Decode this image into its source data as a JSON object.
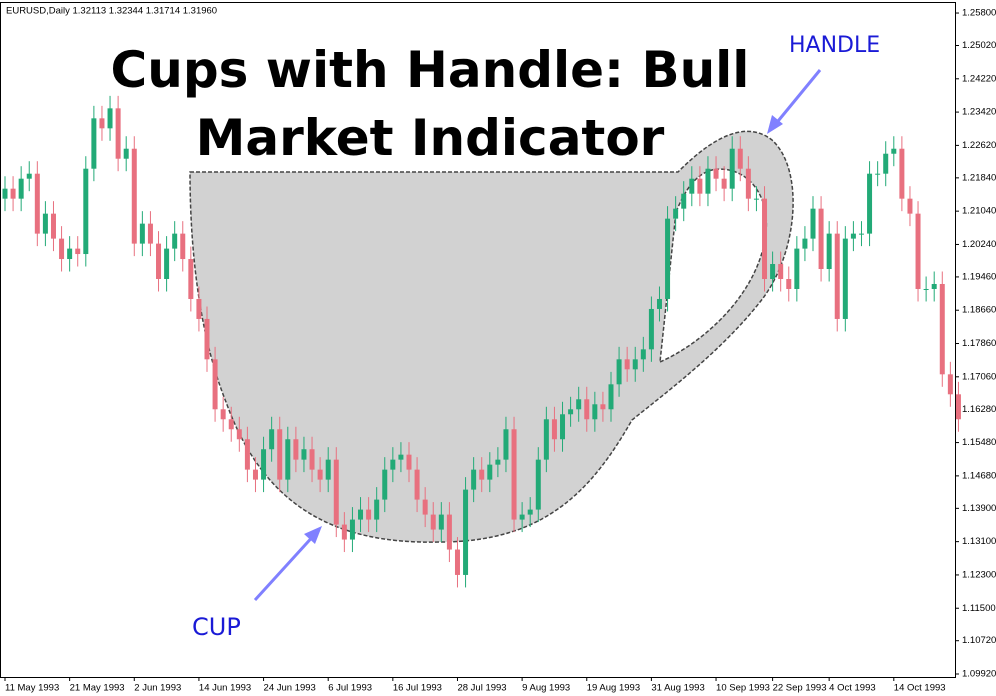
{
  "chart_data": {
    "type": "candlestick",
    "header": "EURUSD,Daily  1.32113 1.32344 1.31714 1.31960",
    "title": "Cups with Handle: Bull Market Indicator",
    "annotations": {
      "handle": "HANDLE",
      "cup": "CUP"
    },
    "up_color": "#22aa77",
    "down_color": "#e8707f",
    "open": [
      1.2134,
      1.2158,
      1.2134,
      1.2182,
      1.2194,
      1.205,
      1.2098,
      1.2038,
      1.1989,
      1.2014,
      1.2001,
      1.2206,
      1.2327,
      1.2303,
      1.2351,
      1.223,
      1.2254,
      1.2026,
      1.2074,
      1.2026,
      1.1941,
      1.2014,
      1.205,
      1.1989,
      1.1893,
      1.1845,
      1.1748,
      1.1628,
      1.1604,
      1.158,
      1.1556,
      1.1483,
      1.1459,
      1.1532,
      1.158,
      1.1459,
      1.1556,
      1.1507,
      1.1532,
      1.1483,
      1.1459,
      1.1507,
      1.1351,
      1.1315,
      1.1363,
      1.1387,
      1.1363,
      1.1411,
      1.1483,
      1.1507,
      1.1519,
      1.1483,
      1.1411,
      1.1375,
      1.1339,
      1.1375,
      1.1291,
      1.123,
      1.1435,
      1.1483,
      1.1459,
      1.1495,
      1.1507,
      1.158,
      1.1363,
      1.1375,
      1.1387,
      1.1507,
      1.1604,
      1.1556,
      1.1616,
      1.1628,
      1.1652,
      1.1604,
      1.164,
      1.1628,
      1.1688,
      1.1748,
      1.1724,
      1.1748,
      1.1772,
      1.1869,
      1.1893,
      1.2086,
      1.211,
      1.2146,
      1.2182,
      1.2146,
      1.2206,
      1.2182,
      1.2158,
      1.2254,
      1.2206,
      1.2134,
      1.2134,
      1.1941,
      1.1977,
      1.1941,
      1.1917,
      1.2014,
      1.2038,
      1.211,
      1.1965,
      1.205,
      1.1845,
      1.2038,
      1.205,
      1.205,
      1.2194,
      1.2194,
      1.2242,
      1.2254,
      1.2134,
      1.2098,
      1.1917,
      1.1917,
      1.1929,
      1.1712,
      1.1664
    ],
    "high": [
      1.2188,
      1.2188,
      1.2212,
      1.2224,
      1.2224,
      1.2128,
      1.2128,
      1.2068,
      1.2044,
      1.2044,
      1.2236,
      1.2357,
      1.2357,
      1.2381,
      1.2381,
      1.2284,
      1.2284,
      1.2104,
      1.2104,
      1.2056,
      1.2044,
      1.208,
      1.208,
      1.2019,
      1.1923,
      1.1875,
      1.1778,
      1.1658,
      1.1634,
      1.161,
      1.1586,
      1.1513,
      1.1562,
      1.161,
      1.161,
      1.1586,
      1.1586,
      1.1562,
      1.1562,
      1.1513,
      1.1537,
      1.1537,
      1.1381,
      1.1393,
      1.1417,
      1.1417,
      1.1441,
      1.1513,
      1.1537,
      1.1549,
      1.1549,
      1.1513,
      1.1441,
      1.1405,
      1.1405,
      1.1405,
      1.1321,
      1.1465,
      1.1513,
      1.1513,
      1.1525,
      1.1537,
      1.161,
      1.161,
      1.1405,
      1.1417,
      1.1537,
      1.1634,
      1.1634,
      1.1646,
      1.1658,
      1.1682,
      1.1682,
      1.167,
      1.167,
      1.1718,
      1.1778,
      1.1778,
      1.1778,
      1.1802,
      1.1899,
      1.1923,
      1.2116,
      1.214,
      1.2176,
      1.2212,
      1.2212,
      1.2236,
      1.2236,
      1.2212,
      1.2284,
      1.2284,
      1.2236,
      1.2164,
      1.2164,
      1.2007,
      1.2007,
      1.1971,
      1.2044,
      1.2068,
      1.214,
      1.214,
      1.208,
      1.208,
      1.2068,
      1.208,
      1.208,
      1.2224,
      1.2224,
      1.2272,
      1.2284,
      1.2284,
      1.2164,
      1.2128,
      1.1947,
      1.1959,
      1.1959,
      1.1742,
      1.1694
    ],
    "low": [
      1.2104,
      1.2104,
      1.2104,
      1.2152,
      1.202,
      1.202,
      1.2008,
      1.1959,
      1.1959,
      1.1971,
      1.1971,
      1.2176,
      1.2273,
      1.2273,
      1.22,
      1.22,
      1.1996,
      1.1996,
      1.1996,
      1.1911,
      1.1911,
      1.1984,
      1.1959,
      1.1863,
      1.1815,
      1.1718,
      1.1598,
      1.1574,
      1.155,
      1.1526,
      1.1453,
      1.1429,
      1.1429,
      1.1502,
      1.1429,
      1.1429,
      1.1477,
      1.1477,
      1.1453,
      1.1429,
      1.1429,
      1.1321,
      1.1285,
      1.1285,
      1.1333,
      1.1333,
      1.1333,
      1.1381,
      1.1453,
      1.1477,
      1.1453,
      1.1381,
      1.1345,
      1.1309,
      1.1309,
      1.1261,
      1.12,
      1.12,
      1.1405,
      1.1429,
      1.1429,
      1.1465,
      1.1477,
      1.1333,
      1.1333,
      1.1345,
      1.1357,
      1.1477,
      1.1526,
      1.1526,
      1.1586,
      1.1598,
      1.1574,
      1.1574,
      1.1598,
      1.1598,
      1.1658,
      1.1694,
      1.1694,
      1.1718,
      1.1742,
      1.1839,
      1.1863,
      1.2056,
      1.208,
      1.2116,
      1.2116,
      1.2116,
      1.2152,
      1.2128,
      1.2128,
      1.2176,
      1.2104,
      1.2104,
      1.1911,
      1.1911,
      1.1911,
      1.1887,
      1.1887,
      1.1984,
      1.2008,
      1.1935,
      1.1935,
      1.1815,
      1.1815,
      1.2008,
      1.202,
      1.202,
      1.2164,
      1.2164,
      1.2212,
      1.2104,
      1.2068,
      1.1887,
      1.1887,
      1.1887,
      1.1682,
      1.1634,
      1.1574
    ],
    "close": [
      1.2158,
      1.2134,
      1.2182,
      1.2194,
      1.205,
      1.2098,
      1.2038,
      1.1989,
      1.2014,
      1.2001,
      1.2206,
      1.2327,
      1.2303,
      1.2351,
      1.223,
      1.2254,
      1.2026,
      1.2074,
      1.2026,
      1.1941,
      1.2014,
      1.205,
      1.1989,
      1.1893,
      1.1845,
      1.1748,
      1.1628,
      1.1604,
      1.158,
      1.1556,
      1.1483,
      1.1459,
      1.1532,
      1.158,
      1.1459,
      1.1556,
      1.1507,
      1.1532,
      1.1483,
      1.1459,
      1.1507,
      1.1351,
      1.1315,
      1.1363,
      1.1387,
      1.1363,
      1.1411,
      1.1483,
      1.1507,
      1.1519,
      1.1483,
      1.1411,
      1.1375,
      1.1339,
      1.1375,
      1.1291,
      1.123,
      1.1435,
      1.1483,
      1.1459,
      1.1495,
      1.1507,
      1.158,
      1.1363,
      1.1375,
      1.1387,
      1.1507,
      1.1604,
      1.1556,
      1.1616,
      1.1628,
      1.1652,
      1.1604,
      1.164,
      1.1628,
      1.1688,
      1.1748,
      1.1724,
      1.1748,
      1.1772,
      1.1869,
      1.1893,
      1.2086,
      1.211,
      1.2146,
      1.2182,
      1.2146,
      1.2206,
      1.2182,
      1.2158,
      1.2254,
      1.2206,
      1.2134,
      1.2134,
      1.1941,
      1.1977,
      1.1941,
      1.1917,
      1.2014,
      1.2038,
      1.211,
      1.1965,
      1.205,
      1.1845,
      1.2038,
      1.205,
      1.205,
      1.2194,
      1.2194,
      1.2242,
      1.2254,
      1.2134,
      1.2098,
      1.1917,
      1.1917,
      1.1929,
      1.1712,
      1.1664,
      1.1604
    ],
    "xticks": [
      {
        "value": 0,
        "label": "11 May 1993"
      },
      {
        "value": 8,
        "label": "21 May 1993"
      },
      {
        "value": 16,
        "label": "2 Jun 1993"
      },
      {
        "value": 24,
        "label": "14 Jun 1993"
      },
      {
        "value": 32,
        "label": "24 Jun 1993"
      },
      {
        "value": 40,
        "label": "6 Jul 1993"
      },
      {
        "value": 48,
        "label": "16 Jul 1993"
      },
      {
        "value": 56,
        "label": "28 Jul 1993"
      },
      {
        "value": 64,
        "label": "9 Aug 1993"
      },
      {
        "value": 72,
        "label": "19 Aug 1993"
      },
      {
        "value": 80,
        "label": "31 Aug 1993"
      },
      {
        "value": 88,
        "label": "10 Sep 1993"
      },
      {
        "value": 95,
        "label": "22 Sep 1993"
      },
      {
        "value": 102,
        "label": "4 Oct 1993"
      },
      {
        "value": 110,
        "label": "14 Oct 1993"
      }
    ],
    "ylim": [
      1.09848,
      1.26041
    ],
    "yticks": [
      {
        "value": 1.258,
        "label": "1.25800"
      },
      {
        "value": 1.2502,
        "label": "1.25020"
      },
      {
        "value": 1.2422,
        "label": "1.24220"
      },
      {
        "value": 1.2342,
        "label": "1.23420"
      },
      {
        "value": 1.2262,
        "label": "1.22620"
      },
      {
        "value": 1.2184,
        "label": "1.21840"
      },
      {
        "value": 1.2104,
        "label": "1.21040"
      },
      {
        "value": 1.2024,
        "label": "1.20240"
      },
      {
        "value": 1.1946,
        "label": "1.19460"
      },
      {
        "value": 1.1866,
        "label": "1.18660"
      },
      {
        "value": 1.1786,
        "label": "1.17860"
      },
      {
        "value": 1.1706,
        "label": "1.17060"
      },
      {
        "value": 1.1628,
        "label": "1.16280"
      },
      {
        "value": 1.1548,
        "label": "1.15480"
      },
      {
        "value": 1.1468,
        "label": "1.14680"
      },
      {
        "value": 1.139,
        "label": "1.13900"
      },
      {
        "value": 1.131,
        "label": "1.13100"
      },
      {
        "value": 1.123,
        "label": "1.12300"
      },
      {
        "value": 1.115,
        "label": "1.11500"
      },
      {
        "value": 1.1072,
        "label": "1.10720"
      },
      {
        "value": 1.0992,
        "label": "1.09920"
      }
    ]
  }
}
